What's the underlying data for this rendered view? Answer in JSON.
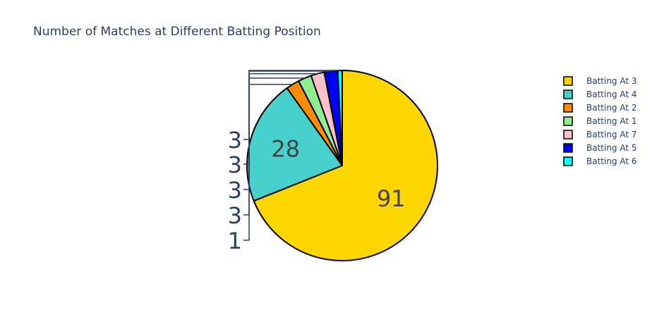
{
  "chart_data": {
    "type": "pie",
    "title": "Number of Matches at Different Batting Position",
    "categories": [
      "Batting At 3",
      "Batting At 4",
      "Batting At 2",
      "Batting At 1",
      "Batting At 7",
      "Batting At 5",
      "Batting At 6"
    ],
    "values": [
      91,
      28,
      3,
      3,
      3,
      3,
      1
    ],
    "colors": [
      "#FFD700",
      "#48D1CC",
      "#FF8C00",
      "#90EE90",
      "#FFC0CB",
      "#0000FF",
      "#00FFFF"
    ],
    "legend_position": "top-right",
    "legend_entries": [
      "Batting At 3",
      "Batting At 4",
      "Batting At 2",
      "Batting At 1",
      "Batting At 7",
      "Batting At 5",
      "Batting At 6"
    ],
    "slice_labels": [
      "91",
      "28",
      "3",
      "3",
      "3",
      "3",
      "1"
    ]
  }
}
